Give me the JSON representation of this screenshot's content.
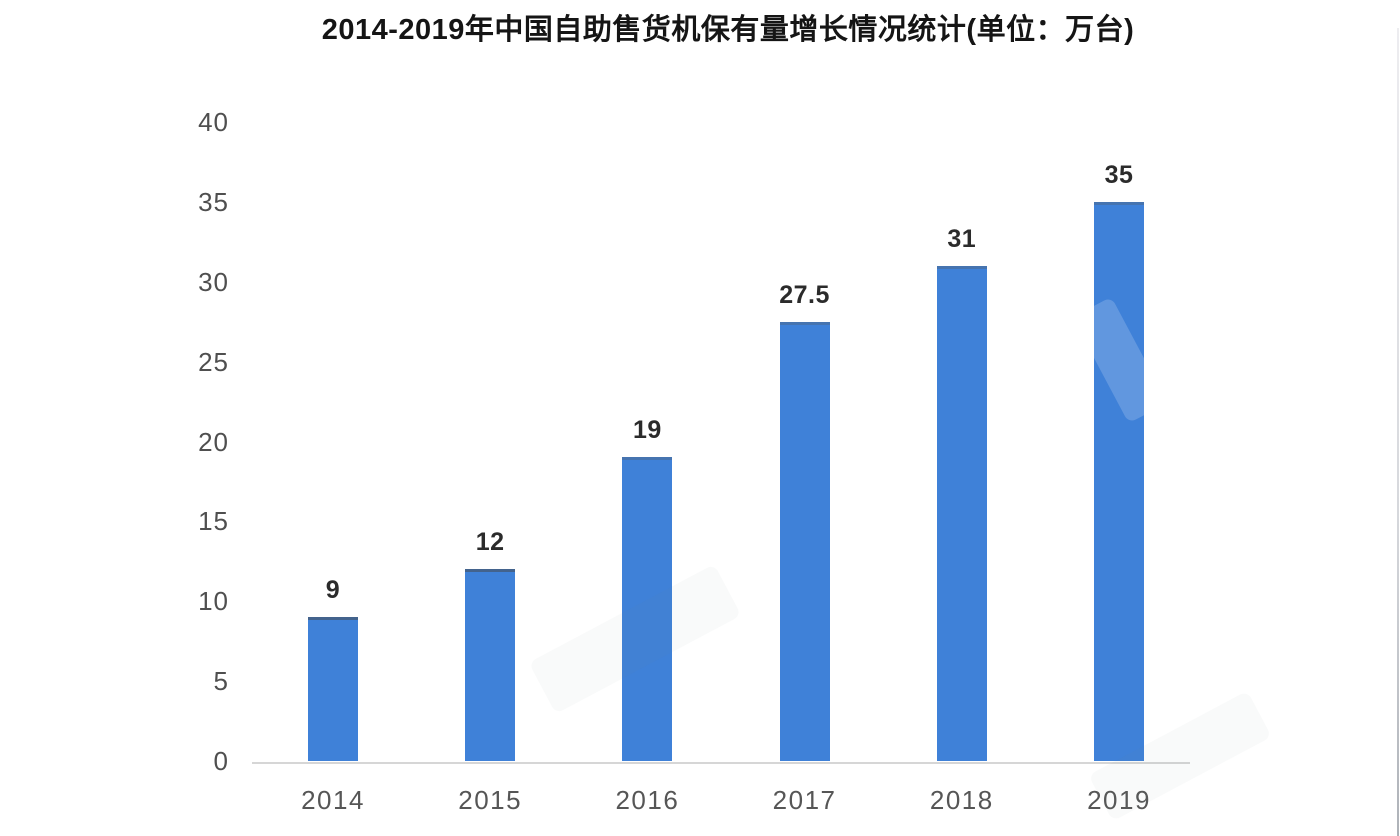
{
  "page": {
    "background": "#ffffff"
  },
  "chart_data": {
    "type": "bar",
    "title": "2014-2019年中国自助售货机保有量增长情况统计(单位：万台)",
    "categories": [
      "2014",
      "2015",
      "2016",
      "2017",
      "2018",
      "2019"
    ],
    "values": [
      9,
      12,
      19,
      27.5,
      31,
      35
    ],
    "value_labels": [
      "9",
      "12",
      "19",
      "27.5",
      "31",
      "35"
    ],
    "unit_label": "万台",
    "xlabel": "",
    "ylabel": "",
    "ylim": [
      0,
      40
    ],
    "yticks": [
      0,
      5,
      10,
      15,
      20,
      25,
      30,
      35,
      40
    ],
    "grid": false,
    "legend": "none",
    "colors": {
      "bar": "#3f81d8",
      "axis_line": "#d6d6d6",
      "ytick_text": "#4f4f4f",
      "xtick_text": "#565656",
      "value_text": "#2b2b2b",
      "title_text": "#151515",
      "edge_line": "#c9ccd1"
    }
  }
}
